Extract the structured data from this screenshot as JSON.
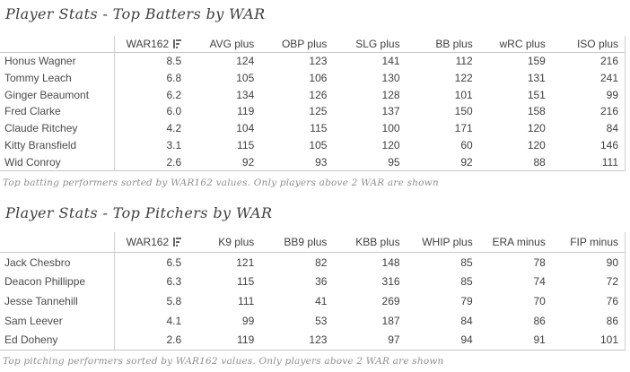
{
  "colors": {
    "background": "#ffffff",
    "table_text": "#404040",
    "header_text": "#3f3f3f",
    "grid_line": "#c6c6c6",
    "title_text": "#3f3f3f",
    "caption_text": "#8f8f8f",
    "sort_icon": "#666666"
  },
  "chart_data": [
    {
      "type": "table",
      "title": "Player Stats - Top Batters by WAR",
      "caption": "Top batting performers sorted by WAR162 values. Only players above 2 WAR are shown",
      "sort": {
        "column": "WAR162",
        "direction": "descending"
      },
      "columns": [
        "",
        "WAR162",
        "AVG plus",
        "OBP plus",
        "SLG plus",
        "BB plus",
        "wRC plus",
        "ISO plus"
      ],
      "rows": [
        [
          "Honus Wagner",
          "8.5",
          "124",
          "123",
          "141",
          "112",
          "159",
          "216"
        ],
        [
          "Tommy Leach",
          "6.8",
          "105",
          "106",
          "130",
          "122",
          "131",
          "241"
        ],
        [
          "Ginger Beaumont",
          "6.2",
          "134",
          "126",
          "128",
          "101",
          "151",
          "99"
        ],
        [
          "Fred Clarke",
          "6.0",
          "119",
          "125",
          "137",
          "150",
          "158",
          "216"
        ],
        [
          "Claude Ritchey",
          "4.2",
          "104",
          "115",
          "100",
          "171",
          "120",
          "84"
        ],
        [
          "Kitty Bransfield",
          "3.1",
          "115",
          "105",
          "120",
          "60",
          "120",
          "146"
        ],
        [
          "Wid Conroy",
          "2.6",
          "92",
          "93",
          "95",
          "92",
          "88",
          "111"
        ]
      ]
    },
    {
      "type": "table",
      "title": "Player Stats - Top Pitchers by WAR",
      "caption": "Top pitching performers sorted by WAR162 values. Only players above 2 WAR are shown",
      "sort": {
        "column": "WAR162",
        "direction": "descending"
      },
      "columns": [
        "",
        "WAR162",
        "K9 plus",
        "BB9 plus",
        "KBB plus",
        "WHIP plus",
        "ERA minus",
        "FIP minus"
      ],
      "rows": [
        [
          "Jack Chesbro",
          "6.5",
          "121",
          "82",
          "148",
          "85",
          "78",
          "90"
        ],
        [
          "Deacon Phillippe",
          "6.3",
          "115",
          "36",
          "316",
          "85",
          "74",
          "72"
        ],
        [
          "Jesse Tannehill",
          "5.8",
          "111",
          "41",
          "269",
          "79",
          "70",
          "76"
        ],
        [
          "Sam Leever",
          "4.1",
          "99",
          "53",
          "187",
          "84",
          "86",
          "86"
        ],
        [
          "Ed Doheny",
          "2.6",
          "119",
          "123",
          "97",
          "94",
          "91",
          "101"
        ]
      ]
    }
  ]
}
